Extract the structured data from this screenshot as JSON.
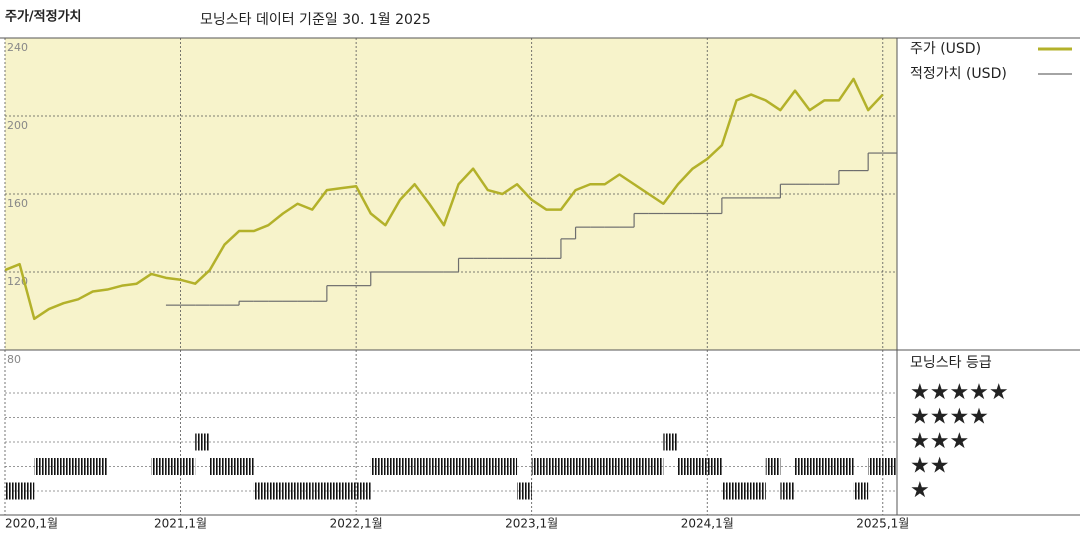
{
  "chart_data": [
    {
      "type": "line",
      "title": "주가/적정가치",
      "subtitle": "모닝스타 데이터 기준일 30. 1월 2025",
      "x": [
        "2020-01",
        "2020-02",
        "2020-03",
        "2020-04",
        "2020-05",
        "2020-06",
        "2020-07",
        "2020-08",
        "2020-09",
        "2020-10",
        "2020-11",
        "2020-12",
        "2021-01",
        "2021-02",
        "2021-03",
        "2021-04",
        "2021-05",
        "2021-06",
        "2021-07",
        "2021-08",
        "2021-09",
        "2021-10",
        "2021-11",
        "2021-12",
        "2022-01",
        "2022-02",
        "2022-03",
        "2022-04",
        "2022-05",
        "2022-06",
        "2022-07",
        "2022-08",
        "2022-09",
        "2022-10",
        "2022-11",
        "2022-12",
        "2023-01",
        "2023-02",
        "2023-03",
        "2023-04",
        "2023-05",
        "2023-06",
        "2023-07",
        "2023-08",
        "2023-09",
        "2023-10",
        "2023-11",
        "2023-12",
        "2024-01",
        "2024-02",
        "2024-03",
        "2024-04",
        "2024-05",
        "2024-06",
        "2024-07",
        "2024-08",
        "2024-09",
        "2024-10",
        "2024-11",
        "2024-12",
        "2025-01"
      ],
      "series": [
        {
          "name": "주가 (USD)",
          "color": "#b3b12a",
          "line_shape": "linear",
          "values": [
            121,
            124,
            96,
            101,
            104,
            106,
            110,
            111,
            113,
            114,
            119,
            117,
            116,
            114,
            121,
            134,
            141,
            141,
            144,
            150,
            155,
            152,
            162,
            163,
            164,
            150,
            144,
            157,
            165,
            155,
            144,
            165,
            173,
            162,
            160,
            165,
            157,
            152,
            152,
            162,
            165,
            165,
            170,
            165,
            160,
            155,
            165,
            173,
            178,
            185,
            208,
            211,
            208,
            203,
            213,
            203,
            208,
            208,
            219,
            203,
            211
          ]
        },
        {
          "name": "적정가치 (USD)",
          "color": "#6e6e6e",
          "line_shape": "step",
          "values": [
            null,
            null,
            null,
            null,
            null,
            null,
            null,
            null,
            null,
            null,
            null,
            103,
            103,
            103,
            103,
            103,
            105,
            105,
            105,
            105,
            105,
            105,
            113,
            113,
            113,
            120,
            120,
            120,
            120,
            120,
            120,
            127,
            127,
            127,
            127,
            127,
            127,
            127,
            137,
            143,
            143,
            143,
            143,
            150,
            150,
            150,
            150,
            150,
            150,
            158,
            158,
            158,
            158,
            165,
            165,
            165,
            165,
            172,
            172,
            181,
            181
          ]
        }
      ],
      "ylim": [
        80,
        240
      ],
      "yticks": [
        80,
        120,
        160,
        200,
        240
      ],
      "xticks": [
        {
          "value": "2020-01",
          "label": "2020,1월"
        },
        {
          "value": "2021-01",
          "label": "2021,1월"
        },
        {
          "value": "2022-01",
          "label": "2022,1월"
        },
        {
          "value": "2023-01",
          "label": "2023,1월"
        },
        {
          "value": "2024-01",
          "label": "2024,1월"
        },
        {
          "value": "2025-01",
          "label": "2025,1월"
        }
      ],
      "grid": true,
      "background": "#f7f3cb",
      "legend": "right"
    },
    {
      "type": "strip",
      "title": "모닝스타 등급",
      "color": "#111111",
      "levels": [
        {
          "value": 5,
          "label": "★★★★★"
        },
        {
          "value": 4,
          "label": "★★★★"
        },
        {
          "value": 3,
          "label": "★★★"
        },
        {
          "value": 2,
          "label": "★★"
        },
        {
          "value": 1,
          "label": "★"
        }
      ],
      "values": [
        1,
        1,
        2,
        2,
        2,
        2,
        2,
        null,
        null,
        null,
        2,
        2,
        2,
        3,
        2,
        2,
        2,
        1,
        1,
        1,
        1,
        1,
        1,
        1,
        1,
        2,
        2,
        2,
        2,
        2,
        2,
        2,
        2,
        2,
        2,
        1,
        2,
        2,
        2,
        2,
        2,
        2,
        2,
        2,
        2,
        3,
        2,
        2,
        2,
        1,
        1,
        1,
        2,
        1,
        2,
        2,
        2,
        2,
        1,
        2,
        2
      ]
    }
  ]
}
